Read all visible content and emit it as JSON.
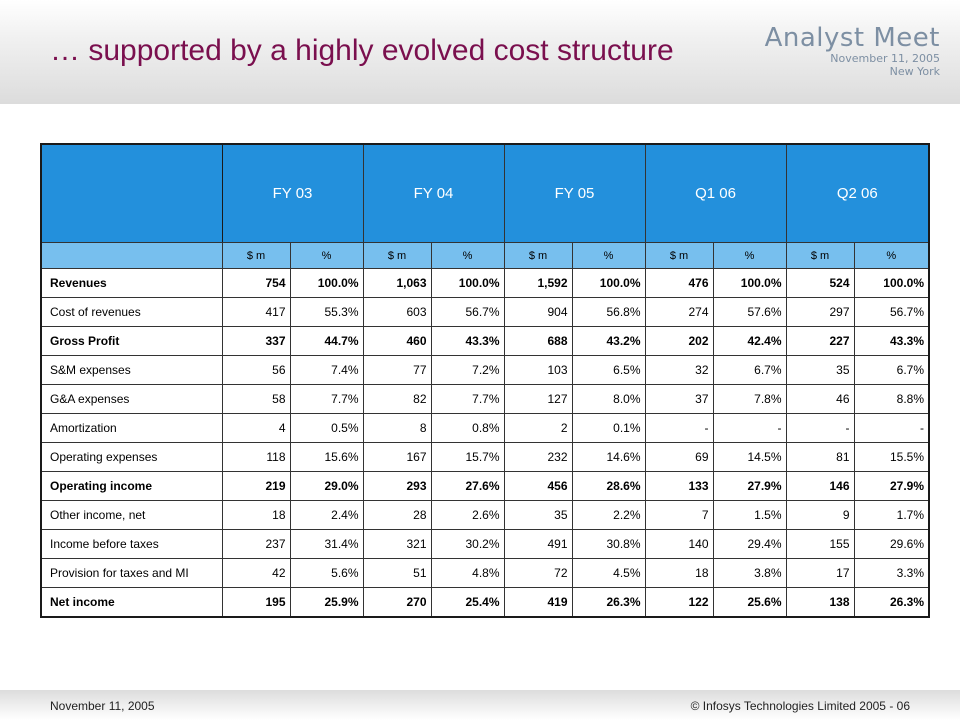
{
  "slide": {
    "title": "… supported by a highly evolved cost structure",
    "brand": {
      "name": "Analyst Meet",
      "date": "November 11, 2005",
      "location": "New York"
    }
  },
  "table": {
    "periods": [
      "FY 03",
      "FY 04",
      "FY 05",
      "Q1 06",
      "Q2 06"
    ],
    "subheaders": [
      "$ m",
      "%"
    ],
    "rows": [
      {
        "label": "Revenues",
        "bold": true,
        "values": [
          "754",
          "100.0%",
          "1,063",
          "100.0%",
          "1,592",
          "100.0%",
          "476",
          "100.0%",
          "524",
          "100.0%"
        ]
      },
      {
        "label": "Cost of revenues",
        "bold": false,
        "values": [
          "417",
          "55.3%",
          "603",
          "56.7%",
          "904",
          "56.8%",
          "274",
          "57.6%",
          "297",
          "56.7%"
        ]
      },
      {
        "label": "Gross Profit",
        "bold": true,
        "values": [
          "337",
          "44.7%",
          "460",
          "43.3%",
          "688",
          "43.2%",
          "202",
          "42.4%",
          "227",
          "43.3%"
        ]
      },
      {
        "label": "S&M expenses",
        "bold": false,
        "values": [
          "56",
          "7.4%",
          "77",
          "7.2%",
          "103",
          "6.5%",
          "32",
          "6.7%",
          "35",
          "6.7%"
        ]
      },
      {
        "label": "G&A expenses",
        "bold": false,
        "values": [
          "58",
          "7.7%",
          "82",
          "7.7%",
          "127",
          "8.0%",
          "37",
          "7.8%",
          "46",
          "8.8%"
        ]
      },
      {
        "label": "Amortization",
        "bold": false,
        "values": [
          "4",
          "0.5%",
          "8",
          "0.8%",
          "2",
          "0.1%",
          "-",
          "-",
          "-",
          "-"
        ]
      },
      {
        "label": "Operating expenses",
        "bold": false,
        "values": [
          "118",
          "15.6%",
          "167",
          "15.7%",
          "232",
          "14.6%",
          "69",
          "14.5%",
          "81",
          "15.5%"
        ]
      },
      {
        "label": "Operating income",
        "bold": true,
        "values": [
          "219",
          "29.0%",
          "293",
          "27.6%",
          "456",
          "28.6%",
          "133",
          "27.9%",
          "146",
          "27.9%"
        ]
      },
      {
        "label": "Other income, net",
        "bold": false,
        "values": [
          "18",
          "2.4%",
          "28",
          "2.6%",
          "35",
          "2.2%",
          "7",
          "1.5%",
          "9",
          "1.7%"
        ]
      },
      {
        "label": "Income before taxes",
        "bold": false,
        "values": [
          "237",
          "31.4%",
          "321",
          "30.2%",
          "491",
          "30.8%",
          "140",
          "29.4%",
          "155",
          "29.6%"
        ]
      },
      {
        "label": "Provision for taxes and MI",
        "bold": false,
        "values": [
          "42",
          "5.6%",
          "51",
          "4.8%",
          "72",
          "4.5%",
          "18",
          "3.8%",
          "17",
          "3.3%"
        ]
      },
      {
        "label": "Net income",
        "bold": true,
        "values": [
          "195",
          "25.9%",
          "270",
          "25.4%",
          "419",
          "26.3%",
          "122",
          "25.6%",
          "138",
          "26.3%"
        ]
      }
    ]
  },
  "footer": {
    "date": "November 11, 2005",
    "copyright": "© Infosys Technologies Limited 2005 - 06"
  }
}
